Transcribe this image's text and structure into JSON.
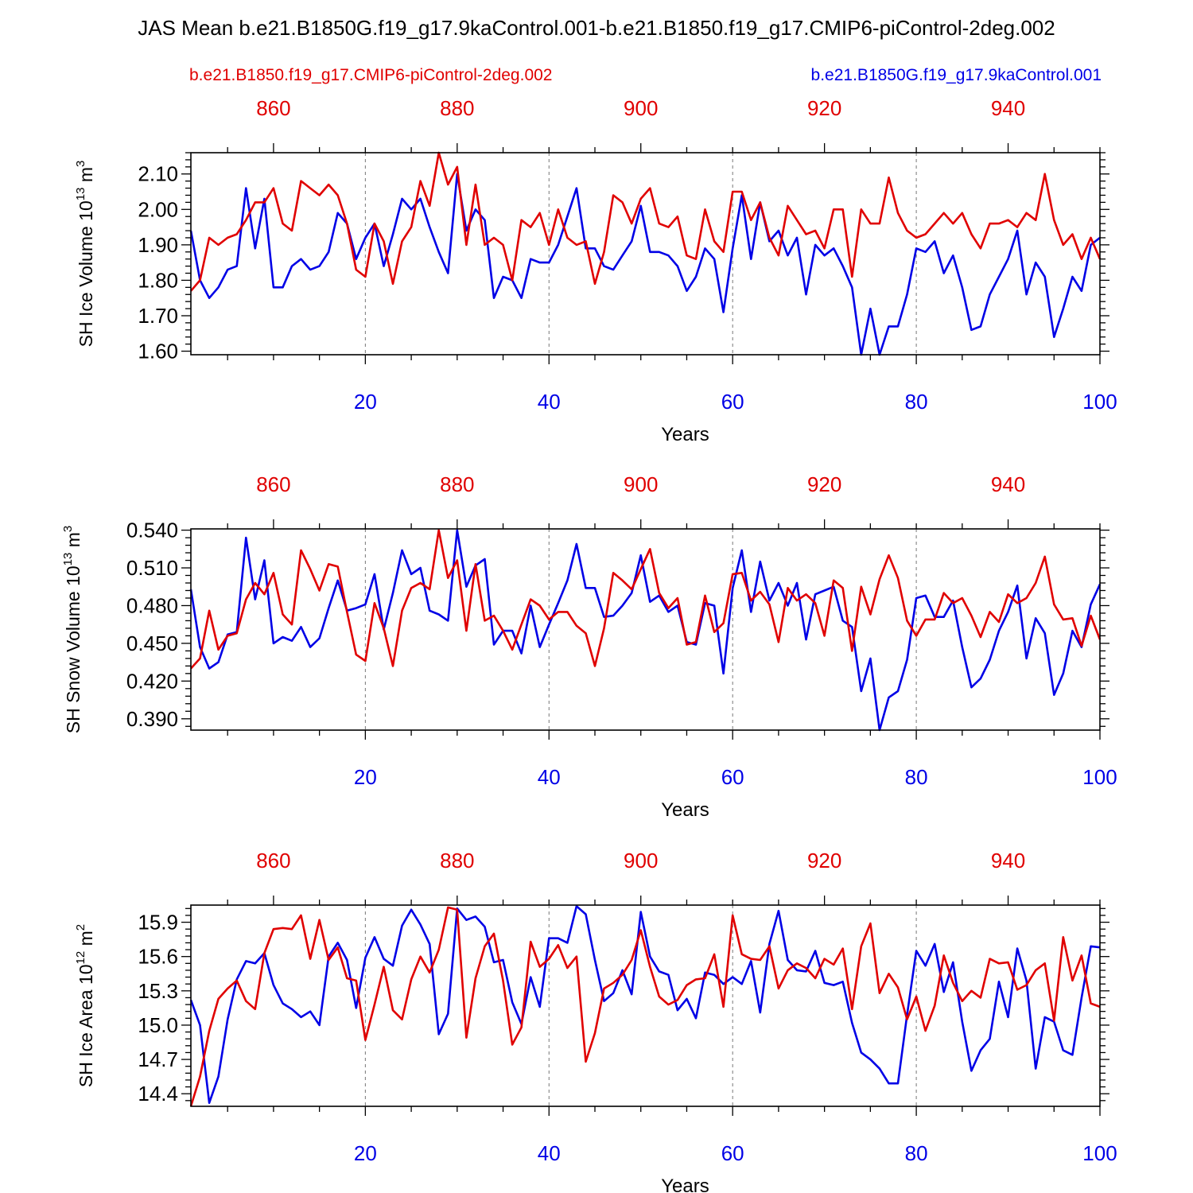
{
  "title": "JAS Mean b.e21.B1850G.f19_g17.9kaControl.001-b.e21.B1850.f19_g17.CMIP6-piControl-2deg.002",
  "legend": {
    "left": "b.e21.B1850.f19_g17.CMIP6-piControl-2deg.002",
    "right": "b.e21.B1850G.f19_g17.9kaControl.001"
  },
  "colors": {
    "red_series": "#e00000",
    "blue_series": "#0000e6",
    "axis": "#000000"
  },
  "chart_data": [
    {
      "type": "line",
      "ylabel": "SH Ice Volume 10^13 m^3",
      "ylabel_main": "SH Ice Volume 10",
      "ylabel_exp": "13",
      "ylabel_unit": "m",
      "ylabel_unit_exp": "3",
      "xlabel": "Years",
      "ylim": [
        1.59,
        2.16
      ],
      "yticks": [
        1.6,
        1.7,
        1.8,
        1.9,
        2.0,
        2.1
      ],
      "ytick_labels": [
        "1.60",
        "1.70",
        "1.80",
        "1.90",
        "2.00",
        "2.10"
      ],
      "xlim_bottom": [
        1,
        100
      ],
      "xticks_bottom": [
        20,
        40,
        60,
        80,
        100
      ],
      "xticks_bottom_labels": [
        "20",
        "40",
        "60",
        "80",
        "100"
      ],
      "xlim_top": [
        851,
        950
      ],
      "xticks_top": [
        860,
        880,
        900,
        920,
        940
      ],
      "xticks_top_labels": [
        "860",
        "880",
        "900",
        "920",
        "940"
      ],
      "series": [
        {
          "name": "b.e21.B1850G.f19_g17.9kaControl.001",
          "color": "#0000e6",
          "axis": "bottom",
          "values": [
            1.94,
            1.8,
            1.75,
            1.78,
            1.83,
            1.84,
            2.06,
            1.89,
            2.03,
            1.78,
            1.78,
            1.84,
            1.86,
            1.83,
            1.84,
            1.88,
            1.99,
            1.96,
            1.86,
            1.92,
            1.96,
            1.84,
            1.93,
            2.03,
            2.0,
            2.03,
            1.95,
            1.88,
            1.82,
            2.1,
            1.94,
            2.0,
            1.97,
            1.75,
            1.81,
            1.8,
            1.75,
            1.86,
            1.85,
            1.85,
            1.9,
            1.98,
            2.06,
            1.89,
            1.89,
            1.84,
            1.83,
            1.87,
            1.91,
            2.01,
            1.88,
            1.88,
            1.87,
            1.84,
            1.77,
            1.81,
            1.89,
            1.86,
            1.71,
            1.89,
            2.04,
            1.86,
            2.02,
            1.91,
            1.94,
            1.87,
            1.92,
            1.76,
            1.9,
            1.87,
            1.89,
            1.84,
            1.78,
            1.59,
            1.72,
            1.59,
            1.67,
            1.67,
            1.76,
            1.89,
            1.88,
            1.91,
            1.82,
            1.87,
            1.78,
            1.66,
            1.67,
            1.76,
            1.81,
            1.86,
            1.94,
            1.76,
            1.85,
            1.81,
            1.64,
            1.72,
            1.81,
            1.77,
            1.9,
            1.92
          ]
        },
        {
          "name": "b.e21.B1850.f19_g17.CMIP6-piControl-2deg.002",
          "color": "#e00000",
          "axis": "top",
          "values": [
            1.77,
            1.8,
            1.92,
            1.9,
            1.92,
            1.93,
            1.97,
            2.02,
            2.02,
            2.06,
            1.96,
            1.94,
            2.08,
            2.06,
            2.04,
            2.07,
            2.04,
            1.96,
            1.83,
            1.81,
            1.96,
            1.91,
            1.79,
            1.91,
            1.95,
            2.08,
            2.01,
            2.16,
            2.07,
            2.12,
            1.9,
            2.07,
            1.9,
            1.92,
            1.9,
            1.8,
            1.97,
            1.95,
            1.99,
            1.9,
            2.0,
            1.92,
            1.9,
            1.91,
            1.79,
            1.88,
            2.04,
            2.02,
            1.96,
            2.03,
            2.06,
            1.96,
            1.95,
            1.98,
            1.87,
            1.86,
            2.0,
            1.91,
            1.88,
            2.05,
            2.05,
            1.97,
            2.02,
            1.92,
            1.87,
            2.01,
            1.97,
            1.93,
            1.94,
            1.89,
            2.0,
            2.0,
            1.81,
            2.0,
            1.96,
            1.96,
            2.09,
            1.99,
            1.94,
            1.92,
            1.93,
            1.96,
            1.99,
            1.96,
            1.99,
            1.93,
            1.89,
            1.96,
            1.96,
            1.97,
            1.95,
            1.99,
            1.97,
            2.1,
            1.97,
            1.9,
            1.93,
            1.86,
            1.92,
            1.86
          ]
        }
      ]
    },
    {
      "type": "line",
      "ylabel": "SH Snow Volume 10^13 m^3",
      "ylabel_main": "SH Snow Volume 10",
      "ylabel_exp": "13",
      "ylabel_unit": "m",
      "ylabel_unit_exp": "3",
      "xlabel": "Years",
      "ylim": [
        0.381,
        0.541
      ],
      "yticks": [
        0.39,
        0.42,
        0.45,
        0.48,
        0.51,
        0.54
      ],
      "ytick_labels": [
        "0.390",
        "0.420",
        "0.450",
        "0.480",
        "0.510",
        "0.540"
      ],
      "xlim_bottom": [
        1,
        100
      ],
      "xticks_bottom": [
        20,
        40,
        60,
        80,
        100
      ],
      "xticks_bottom_labels": [
        "20",
        "40",
        "60",
        "80",
        "100"
      ],
      "xlim_top": [
        851,
        950
      ],
      "xticks_top": [
        860,
        880,
        900,
        920,
        940
      ],
      "xticks_top_labels": [
        "860",
        "880",
        "900",
        "920",
        "940"
      ],
      "series": [
        {
          "name": "b.e21.B1850G.f19_g17.9kaControl.001",
          "color": "#0000e6",
          "axis": "bottom",
          "values": [
            0.493,
            0.447,
            0.43,
            0.435,
            0.457,
            0.459,
            0.534,
            0.485,
            0.516,
            0.45,
            0.455,
            0.452,
            0.463,
            0.447,
            0.454,
            0.478,
            0.5,
            0.476,
            0.478,
            0.481,
            0.505,
            0.461,
            0.49,
            0.524,
            0.505,
            0.51,
            0.476,
            0.473,
            0.468,
            0.54,
            0.495,
            0.512,
            0.517,
            0.449,
            0.46,
            0.46,
            0.442,
            0.48,
            0.447,
            0.465,
            0.482,
            0.5,
            0.529,
            0.494,
            0.494,
            0.471,
            0.472,
            0.48,
            0.49,
            0.52,
            0.483,
            0.488,
            0.475,
            0.48,
            0.451,
            0.449,
            0.482,
            0.48,
            0.426,
            0.494,
            0.524,
            0.475,
            0.515,
            0.484,
            0.498,
            0.48,
            0.498,
            0.453,
            0.489,
            0.492,
            0.495,
            0.468,
            0.463,
            0.412,
            0.438,
            0.381,
            0.407,
            0.412,
            0.437,
            0.486,
            0.488,
            0.471,
            0.471,
            0.484,
            0.447,
            0.415,
            0.422,
            0.437,
            0.46,
            0.475,
            0.496,
            0.438,
            0.47,
            0.458,
            0.409,
            0.426,
            0.46,
            0.447,
            0.481,
            0.497
          ]
        },
        {
          "name": "b.e21.B1850.f19_g17.CMIP6-piControl-2deg.002",
          "color": "#e00000",
          "axis": "top",
          "values": [
            0.43,
            0.438,
            0.476,
            0.445,
            0.456,
            0.458,
            0.485,
            0.498,
            0.489,
            0.506,
            0.473,
            0.465,
            0.524,
            0.509,
            0.492,
            0.513,
            0.511,
            0.475,
            0.441,
            0.436,
            0.482,
            0.462,
            0.432,
            0.476,
            0.494,
            0.498,
            0.493,
            0.54,
            0.502,
            0.516,
            0.46,
            0.513,
            0.468,
            0.472,
            0.46,
            0.445,
            0.465,
            0.485,
            0.48,
            0.469,
            0.475,
            0.475,
            0.464,
            0.458,
            0.432,
            0.462,
            0.506,
            0.5,
            0.493,
            0.509,
            0.525,
            0.49,
            0.478,
            0.486,
            0.449,
            0.451,
            0.488,
            0.459,
            0.466,
            0.505,
            0.506,
            0.484,
            0.491,
            0.481,
            0.451,
            0.494,
            0.484,
            0.489,
            0.482,
            0.456,
            0.5,
            0.494,
            0.444,
            0.495,
            0.473,
            0.501,
            0.52,
            0.502,
            0.468,
            0.456,
            0.469,
            0.469,
            0.49,
            0.482,
            0.486,
            0.472,
            0.455,
            0.475,
            0.467,
            0.489,
            0.482,
            0.486,
            0.498,
            0.519,
            0.481,
            0.469,
            0.47,
            0.448,
            0.472,
            0.453
          ]
        }
      ]
    },
    {
      "type": "line",
      "ylabel": "SH Ice Area 10^12 m^2",
      "ylabel_main": "SH Ice Area 10",
      "ylabel_exp": "12",
      "ylabel_unit": "m",
      "ylabel_unit_exp": "2",
      "xlabel": "Years",
      "ylim": [
        14.29,
        16.05
      ],
      "yticks": [
        14.4,
        14.7,
        15.0,
        15.3,
        15.6,
        15.9
      ],
      "ytick_labels": [
        "14.4",
        "14.7",
        "15.0",
        "15.3",
        "15.6",
        "15.9"
      ],
      "xlim_bottom": [
        1,
        100
      ],
      "xticks_bottom": [
        20,
        40,
        60,
        80,
        100
      ],
      "xticks_bottom_labels": [
        "20",
        "40",
        "60",
        "80",
        "100"
      ],
      "xlim_top": [
        851,
        950
      ],
      "xticks_top": [
        860,
        880,
        900,
        920,
        940
      ],
      "xticks_top_labels": [
        "860",
        "880",
        "900",
        "920",
        "940"
      ],
      "series": [
        {
          "name": "b.e21.B1850G.f19_g17.9kaControl.001",
          "color": "#0000e6",
          "axis": "bottom",
          "values": [
            15.22,
            15.0,
            14.32,
            14.55,
            15.05,
            15.4,
            15.56,
            15.54,
            15.63,
            15.35,
            15.19,
            15.14,
            15.07,
            15.12,
            15.0,
            15.6,
            15.72,
            15.57,
            15.15,
            15.59,
            15.77,
            15.58,
            15.52,
            15.87,
            16.01,
            15.88,
            15.71,
            14.92,
            15.1,
            16.02,
            15.92,
            15.95,
            15.86,
            15.55,
            15.57,
            15.2,
            15.01,
            15.42,
            15.16,
            15.76,
            15.76,
            15.72,
            16.04,
            15.97,
            15.57,
            15.21,
            15.28,
            15.48,
            15.27,
            15.99,
            15.6,
            15.47,
            15.44,
            15.13,
            15.23,
            15.06,
            15.46,
            15.44,
            15.36,
            15.42,
            15.36,
            15.56,
            15.11,
            15.71,
            16.0,
            15.57,
            15.48,
            15.47,
            15.65,
            15.37,
            15.35,
            15.38,
            15.02,
            14.76,
            14.7,
            14.62,
            14.49,
            14.49,
            15.09,
            15.65,
            15.52,
            15.71,
            15.29,
            15.55,
            15.03,
            14.6,
            14.78,
            14.88,
            15.38,
            15.07,
            15.67,
            15.39,
            14.62,
            15.07,
            15.03,
            14.78,
            14.74,
            15.24,
            15.69,
            15.68
          ]
        },
        {
          "name": "b.e21.B1850.f19_g17.CMIP6-piControl-2deg.002",
          "color": "#e00000",
          "axis": "top",
          "values": [
            14.29,
            14.55,
            14.95,
            15.23,
            15.32,
            15.39,
            15.21,
            15.14,
            15.63,
            15.84,
            15.85,
            15.84,
            15.96,
            15.58,
            15.92,
            15.57,
            15.68,
            15.41,
            15.39,
            14.87,
            15.18,
            15.51,
            15.13,
            15.05,
            15.4,
            15.6,
            15.46,
            15.66,
            16.03,
            16.01,
            14.89,
            15.41,
            15.69,
            15.8,
            15.39,
            14.83,
            14.98,
            15.73,
            15.51,
            15.58,
            15.7,
            15.5,
            15.6,
            14.68,
            14.93,
            15.32,
            15.37,
            15.44,
            15.57,
            15.83,
            15.51,
            15.25,
            15.18,
            15.22,
            15.35,
            15.4,
            15.41,
            15.62,
            15.16,
            15.96,
            15.62,
            15.58,
            15.57,
            15.69,
            15.32,
            15.48,
            15.54,
            15.5,
            15.41,
            15.58,
            15.53,
            15.67,
            15.14,
            15.69,
            15.89,
            15.28,
            15.45,
            15.33,
            15.05,
            15.25,
            14.95,
            15.17,
            15.61,
            15.37,
            15.21,
            15.3,
            15.24,
            15.58,
            15.54,
            15.55,
            15.31,
            15.35,
            15.48,
            15.54,
            15.04,
            15.77,
            15.39,
            15.61,
            15.19,
            15.16
          ]
        }
      ]
    }
  ]
}
